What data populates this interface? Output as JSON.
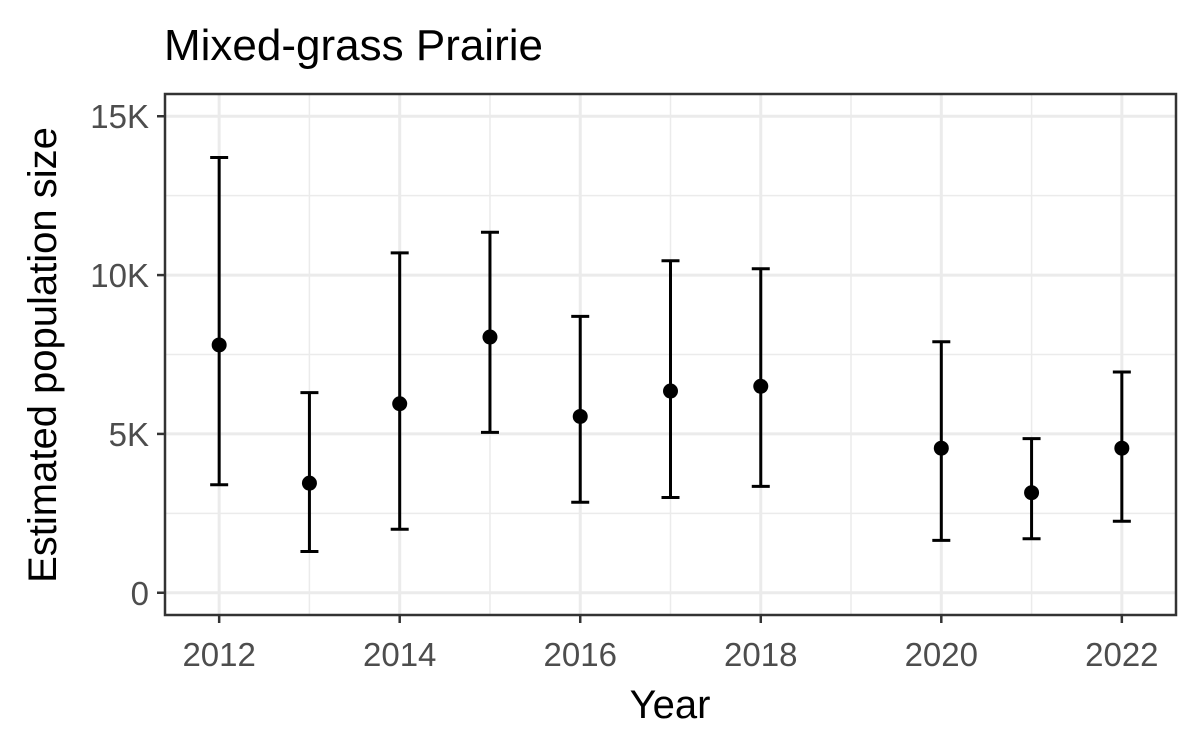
{
  "chart_data": {
    "type": "scatter",
    "title": "Mixed-grass Prairie",
    "xlabel": "Year",
    "ylabel": "Estimated population size",
    "xlim": [
      2011.4,
      2022.6
    ],
    "ylim": [
      -700,
      15700
    ],
    "x_ticks": [
      2012,
      2014,
      2016,
      2018,
      2020,
      2022
    ],
    "x_tick_labels": [
      "2012",
      "2014",
      "2016",
      "2018",
      "2020",
      "2022"
    ],
    "y_ticks": [
      0,
      5000,
      10000,
      15000
    ],
    "y_tick_labels": [
      "0",
      "5K",
      "10K",
      "15K"
    ],
    "grid": true,
    "legend": "none",
    "points": [
      {
        "x": 2012,
        "y": 7800,
        "ymin": 3400,
        "ymax": 13700
      },
      {
        "x": 2013,
        "y": 3450,
        "ymin": 1300,
        "ymax": 6300
      },
      {
        "x": 2014,
        "y": 5950,
        "ymin": 2000,
        "ymax": 10700
      },
      {
        "x": 2015,
        "y": 8050,
        "ymin": 5050,
        "ymax": 11350
      },
      {
        "x": 2016,
        "y": 5550,
        "ymin": 2850,
        "ymax": 8700
      },
      {
        "x": 2017,
        "y": 6350,
        "ymin": 3000,
        "ymax": 10450
      },
      {
        "x": 2018,
        "y": 6500,
        "ymin": 3350,
        "ymax": 10200
      },
      {
        "x": 2020,
        "y": 4550,
        "ymin": 1650,
        "ymax": 7900
      },
      {
        "x": 2021,
        "y": 3150,
        "ymin": 1700,
        "ymax": 4850
      },
      {
        "x": 2022,
        "y": 4550,
        "ymin": 2250,
        "ymax": 6950
      }
    ],
    "colors": {
      "point": "#000000",
      "panel_border": "#333333",
      "grid": "#ebebeb",
      "tick_label": "#4d4d4d"
    }
  }
}
